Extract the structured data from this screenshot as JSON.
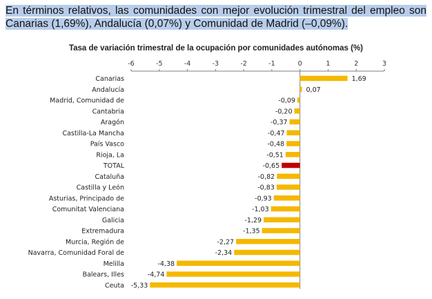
{
  "intro": {
    "text": "En términos relativos, las comunidades con mejor evolución trimestral del empleo son Canarias (1,69%), Andalucía (0,07%) y Comunidad de Madrid (–0,09%)."
  },
  "chart_data": {
    "type": "bar",
    "orientation": "horizontal",
    "title": "Tasa de variación trimestral de la ocupación por comunidades autónomas (%)",
    "xlim": [
      -6,
      3
    ],
    "xticks": [
      -6,
      -5,
      -4,
      -3,
      -2,
      -1,
      0,
      1,
      2,
      3
    ],
    "categories": [
      "Canarias",
      "Andalucía",
      "Madrid, Comunidad de",
      "Cantabria",
      "Aragón",
      "Castilla-La Mancha",
      "País Vasco",
      "Rioja, La",
      "TOTAL",
      "Cataluña",
      "Castilla y León",
      "Asturias, Principado de",
      "Comunitat Valenciana",
      "Galicia",
      "Extremadura",
      "Murcia, Región de",
      "Navarra, Comunidad Foral de",
      "Melilla",
      "Balears, Illes",
      "Ceuta"
    ],
    "values": [
      1.69,
      0.07,
      -0.09,
      -0.2,
      -0.37,
      -0.47,
      -0.48,
      -0.51,
      -0.65,
      -0.82,
      -0.83,
      -0.93,
      -1.03,
      -1.29,
      -1.35,
      -2.27,
      -2.34,
      -4.38,
      -4.74,
      -5.33
    ],
    "labels": [
      "1,69",
      "0,07",
      "-0,09",
      "-0,20",
      "-0,37",
      "-0,47",
      "-0,48",
      "-0,51",
      "-0,65",
      "-0,82",
      "-0,83",
      "-0,93",
      "-1,03",
      "-1,29",
      "-1,35",
      "-2,27",
      "-2,34",
      "-4,38",
      "-4,74",
      "-5,33"
    ],
    "colors": {
      "bar": "#f5b800",
      "highlight": "#c00000"
    },
    "highlight_category": "TOTAL"
  }
}
